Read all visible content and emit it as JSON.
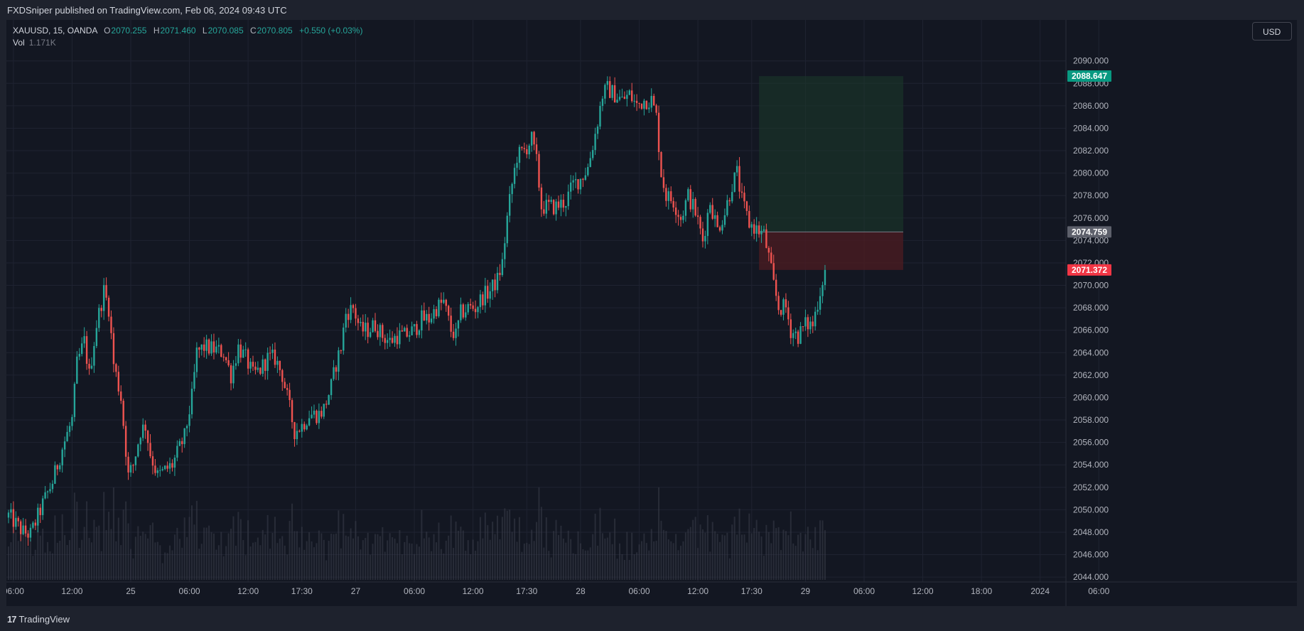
{
  "header": {
    "published_text": "FXDSniper published on TradingView.com, Feb 06, 2024 09:43 UTC"
  },
  "legend": {
    "symbol": "XAUUSD, 15, OANDA",
    "open_label": "O",
    "open": "2070.255",
    "high_label": "H",
    "high": "2071.460",
    "low_label": "L",
    "low": "2070.085",
    "close_label": "C",
    "close": "2070.805",
    "change": "+0.550 (+0.03%)",
    "vol_label": "Vol",
    "vol_value": "1.171K"
  },
  "currency_button": "USD",
  "footer": {
    "logo_mark": "17",
    "logo_text": "TradingView"
  },
  "colors": {
    "background": "#131722",
    "up": "#26a69a",
    "down": "#ef5350",
    "grid": "#1f2331",
    "target_zone": "#1b3a2a",
    "stop_zone": "#4a1c22",
    "target_tag": "#089981",
    "entry_tag": "#5d606b",
    "current_tag": "#f23645"
  },
  "chart_data": {
    "type": "candlestick",
    "symbol": "XAUUSD",
    "interval": "15",
    "ylim": [
      2043.5,
      2091.5
    ],
    "y_ticks": [
      "2044.000",
      "2046.000",
      "2048.000",
      "2050.000",
      "2052.000",
      "2054.000",
      "2056.000",
      "2058.000",
      "2060.000",
      "2062.000",
      "2064.000",
      "2066.000",
      "2068.000",
      "2070.000",
      "2072.000",
      "2074.000",
      "2076.000",
      "2078.000",
      "2080.000",
      "2082.000",
      "2084.000",
      "2086.000",
      "2088.000",
      "2090.000"
    ],
    "x_ticks": [
      {
        "label": "06:00",
        "bar": 2
      },
      {
        "label": "12:00",
        "bar": 26
      },
      {
        "label": "25",
        "bar": 50
      },
      {
        "label": "06:00",
        "bar": 74
      },
      {
        "label": "12:00",
        "bar": 98
      },
      {
        "label": "17:30",
        "bar": 120
      },
      {
        "label": "27",
        "bar": 142
      },
      {
        "label": "06:00",
        "bar": 166
      },
      {
        "label": "12:00",
        "bar": 190
      },
      {
        "label": "17:30",
        "bar": 212
      },
      {
        "label": "28",
        "bar": 234
      },
      {
        "label": "06:00",
        "bar": 258
      },
      {
        "label": "12:00",
        "bar": 282
      },
      {
        "label": "17:30",
        "bar": 304
      },
      {
        "label": "29",
        "bar": 326
      },
      {
        "label": "06:00",
        "bar": 350
      },
      {
        "label": "12:00",
        "bar": 374
      },
      {
        "label": "18:00",
        "bar": 398
      },
      {
        "label": "2024",
        "bar": 422
      },
      {
        "label": "06:00",
        "bar": 446
      }
    ],
    "price_anchors": [
      [
        0,
        2049.5
      ],
      [
        6,
        2048.0
      ],
      [
        9,
        2047.8
      ],
      [
        14,
        2050.5
      ],
      [
        18,
        2052.5
      ],
      [
        22,
        2055.5
      ],
      [
        26,
        2058.0
      ],
      [
        28,
        2063.0
      ],
      [
        31,
        2065.0
      ],
      [
        33,
        2062.0
      ],
      [
        36,
        2066.5
      ],
      [
        39,
        2069.5
      ],
      [
        41,
        2068.0
      ],
      [
        43,
        2063.0
      ],
      [
        46,
        2060.0
      ],
      [
        49,
        2053.0
      ],
      [
        51,
        2054.0
      ],
      [
        54,
        2057.0
      ],
      [
        56,
        2057.5
      ],
      [
        58,
        2055.0
      ],
      [
        61,
        2053.0
      ],
      [
        64,
        2053.5
      ],
      [
        67,
        2054.0
      ],
      [
        70,
        2055.5
      ],
      [
        72,
        2056.5
      ],
      [
        75,
        2060.0
      ],
      [
        77,
        2064.0
      ],
      [
        80,
        2064.5
      ],
      [
        84,
        2064.3
      ],
      [
        88,
        2064.0
      ],
      [
        91,
        2062.0
      ],
      [
        94,
        2064.5
      ],
      [
        97,
        2063.5
      ],
      [
        100,
        2062.0
      ],
      [
        103,
        2062.5
      ],
      [
        106,
        2063.5
      ],
      [
        109,
        2063.5
      ],
      [
        112,
        2062.0
      ],
      [
        115,
        2059.0
      ],
      [
        117,
        2057.0
      ],
      [
        120,
        2057.5
      ],
      [
        123,
        2058.5
      ],
      [
        127,
        2058.5
      ],
      [
        129,
        2059.0
      ],
      [
        132,
        2061.0
      ],
      [
        134,
        2063.0
      ],
      [
        136,
        2064.5
      ],
      [
        138,
        2067.5
      ],
      [
        141,
        2068.0
      ],
      [
        144,
        2066.0
      ],
      [
        147,
        2066.0
      ],
      [
        150,
        2066.5
      ],
      [
        153,
        2065.5
      ],
      [
        156,
        2065.0
      ],
      [
        159,
        2065.5
      ],
      [
        162,
        2065.5
      ],
      [
        166,
        2066.0
      ],
      [
        169,
        2067.0
      ],
      [
        172,
        2067.0
      ],
      [
        175,
        2068.0
      ],
      [
        178,
        2068.5
      ],
      [
        181,
        2066.0
      ],
      [
        183,
        2065.5
      ],
      [
        185,
        2067.5
      ],
      [
        188,
        2068.0
      ],
      [
        191,
        2068.0
      ],
      [
        194,
        2069.0
      ],
      [
        197,
        2069.5
      ],
      [
        200,
        2070.5
      ],
      [
        202,
        2072.0
      ],
      [
        204,
        2076.0
      ],
      [
        206,
        2079.0
      ],
      [
        208,
        2081.5
      ],
      [
        211,
        2082.0
      ],
      [
        214,
        2083.0
      ],
      [
        216,
        2081.0
      ],
      [
        218,
        2077.0
      ],
      [
        221,
        2077.0
      ],
      [
        224,
        2077.0
      ],
      [
        228,
        2077.5
      ],
      [
        231,
        2079.0
      ],
      [
        234,
        2079.5
      ],
      [
        237,
        2080.5
      ],
      [
        240,
        2083.5
      ],
      [
        243,
        2087.0
      ],
      [
        245,
        2087.5
      ],
      [
        248,
        2087.0
      ],
      [
        251,
        2086.5
      ],
      [
        254,
        2087.0
      ],
      [
        257,
        2086.0
      ],
      [
        260,
        2086.5
      ],
      [
        263,
        2086.5
      ],
      [
        265,
        2085.0
      ],
      [
        267,
        2080.0
      ],
      [
        269,
        2078.0
      ],
      [
        272,
        2077.5
      ],
      [
        275,
        2076.0
      ],
      [
        278,
        2078.0
      ],
      [
        281,
        2076.5
      ],
      [
        284,
        2074.0
      ],
      [
        287,
        2077.5
      ],
      [
        290,
        2075.0
      ],
      [
        293,
        2076.5
      ],
      [
        296,
        2079.0
      ],
      [
        298,
        2080.0
      ],
      [
        300,
        2077.5
      ],
      [
        303,
        2075.5
      ],
      [
        306,
        2075.0
      ],
      [
        309,
        2074.5
      ],
      [
        311,
        2072.5
      ],
      [
        313,
        2070.0
      ],
      [
        315,
        2068.0
      ],
      [
        318,
        2068.0
      ],
      [
        320,
        2066.0
      ],
      [
        323,
        2065.5
      ],
      [
        326,
        2066.5
      ],
      [
        329,
        2066.5
      ],
      [
        331,
        2068.5
      ],
      [
        333,
        2070.5
      ],
      [
        334,
        2071.37
      ]
    ],
    "volume_profile": "stylized volume bars beneath price, peaks near the major moves",
    "position": {
      "type": "long",
      "entry": 2074.759,
      "target": 2088.647,
      "stop": 2071.372,
      "start_bar": 307,
      "end_bar": 366
    },
    "price_tags": [
      {
        "value": "2088.647",
        "role": "target"
      },
      {
        "value": "2074.759",
        "role": "entry"
      },
      {
        "value": "2071.372",
        "role": "current"
      }
    ]
  }
}
